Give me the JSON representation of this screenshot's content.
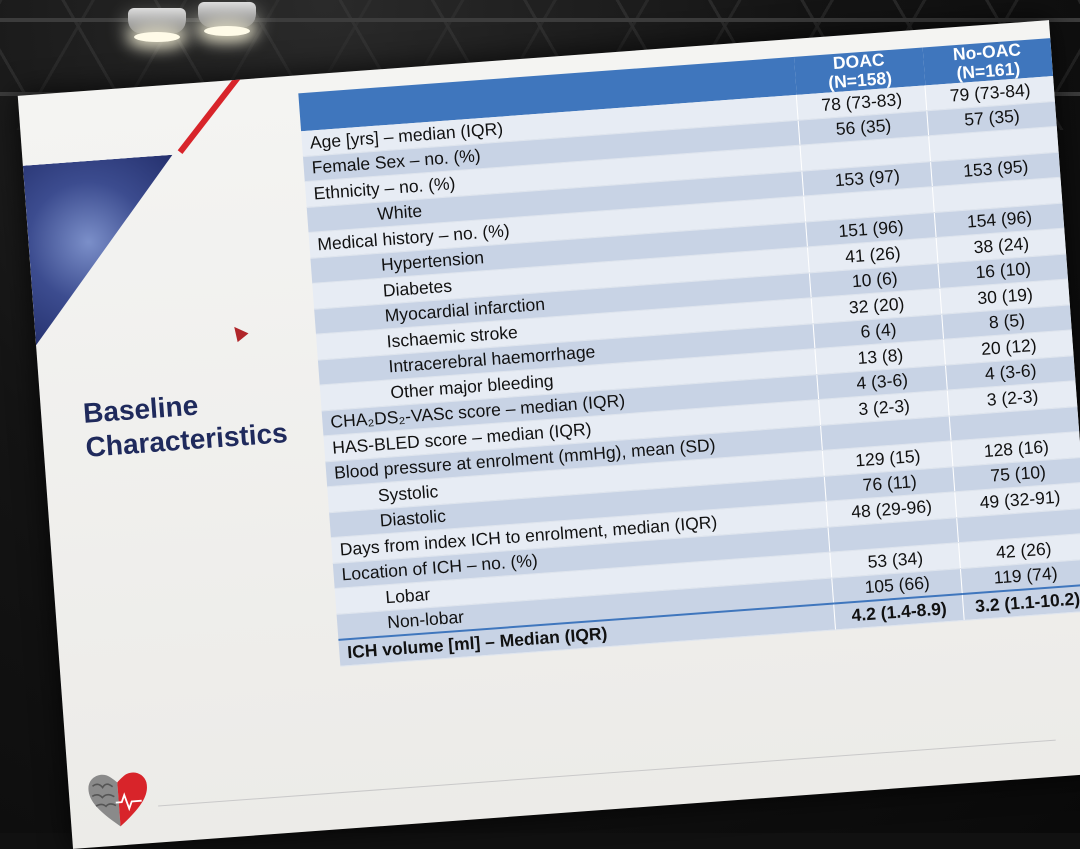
{
  "slide": {
    "title_line1": "Baseline",
    "title_line2": "Characteristics"
  },
  "table": {
    "columns": [
      {
        "name": "DOAC",
        "n": "(N=158)"
      },
      {
        "name": "No-OAC",
        "n": "(N=161)"
      }
    ],
    "rows": [
      {
        "label": "Age [yrs] – median (IQR)",
        "doac": "78 (73-83)",
        "nooac": "79 (73-84)",
        "indent": 0
      },
      {
        "label": "Female Sex – no. (%)",
        "doac": "56 (35)",
        "nooac": "57 (35)",
        "indent": 0
      },
      {
        "label": "Ethnicity – no. (%)",
        "doac": "",
        "nooac": "",
        "indent": 0
      },
      {
        "label": "White",
        "doac": "153 (97)",
        "nooac": "153 (95)",
        "indent": 1
      },
      {
        "label": "Medical history – no. (%)",
        "doac": "",
        "nooac": "",
        "indent": 0
      },
      {
        "label": "Hypertension",
        "doac": "151 (96)",
        "nooac": "154 (96)",
        "indent": 1
      },
      {
        "label": "Diabetes",
        "doac": "41 (26)",
        "nooac": "38 (24)",
        "indent": 1
      },
      {
        "label": "Myocardial infarction",
        "doac": "10 (6)",
        "nooac": "16 (10)",
        "indent": 1
      },
      {
        "label": "Ischaemic stroke",
        "doac": "32 (20)",
        "nooac": "30 (19)",
        "indent": 1
      },
      {
        "label": "Intracerebral haemorrhage",
        "doac": "6 (4)",
        "nooac": "8 (5)",
        "indent": 1
      },
      {
        "label": "Other major bleeding",
        "doac": "13 (8)",
        "nooac": "20 (12)",
        "indent": 1
      },
      {
        "label": "CHA₂DS₂-VASc score – median (IQR)",
        "doac": "4 (3-6)",
        "nooac": "4 (3-6)",
        "indent": 0
      },
      {
        "label": "HAS-BLED score – median (IQR)",
        "doac": "3 (2-3)",
        "nooac": "3 (2-3)",
        "indent": 0
      },
      {
        "label": "Blood pressure at enrolment (mmHg), mean (SD)",
        "doac": "",
        "nooac": "",
        "indent": 0
      },
      {
        "label": "Systolic",
        "doac": "129 (15)",
        "nooac": "128 (16)",
        "indent": 2
      },
      {
        "label": "Diastolic",
        "doac": "76 (11)",
        "nooac": "75 (10)",
        "indent": 2
      },
      {
        "label": "Days from index ICH to enrolment, median (IQR)",
        "doac": "48 (29-96)",
        "nooac": "49 (32-91)",
        "indent": 0
      },
      {
        "label": "Location of ICH – no. (%)",
        "doac": "",
        "nooac": "",
        "indent": 0
      },
      {
        "label": "Lobar",
        "doac": "53 (34)",
        "nooac": "42 (26)",
        "indent": 2
      },
      {
        "label": "Non-lobar",
        "doac": "105 (66)",
        "nooac": "119 (74)",
        "indent": 2
      },
      {
        "label": "ICH volume [ml] – Median (IQR)",
        "doac": "4.2 (1.4-8.9)",
        "nooac": "3.2 (1.1-10.2)",
        "indent": 0,
        "bold": true
      }
    ]
  },
  "colors": {
    "header_blue": "#3f76bd",
    "title_navy": "#1f2a5c",
    "accent_red": "#d8242a"
  },
  "icons": {
    "logo": "brain-heart-logo-icon",
    "pointer": "laser-pointer-icon"
  }
}
